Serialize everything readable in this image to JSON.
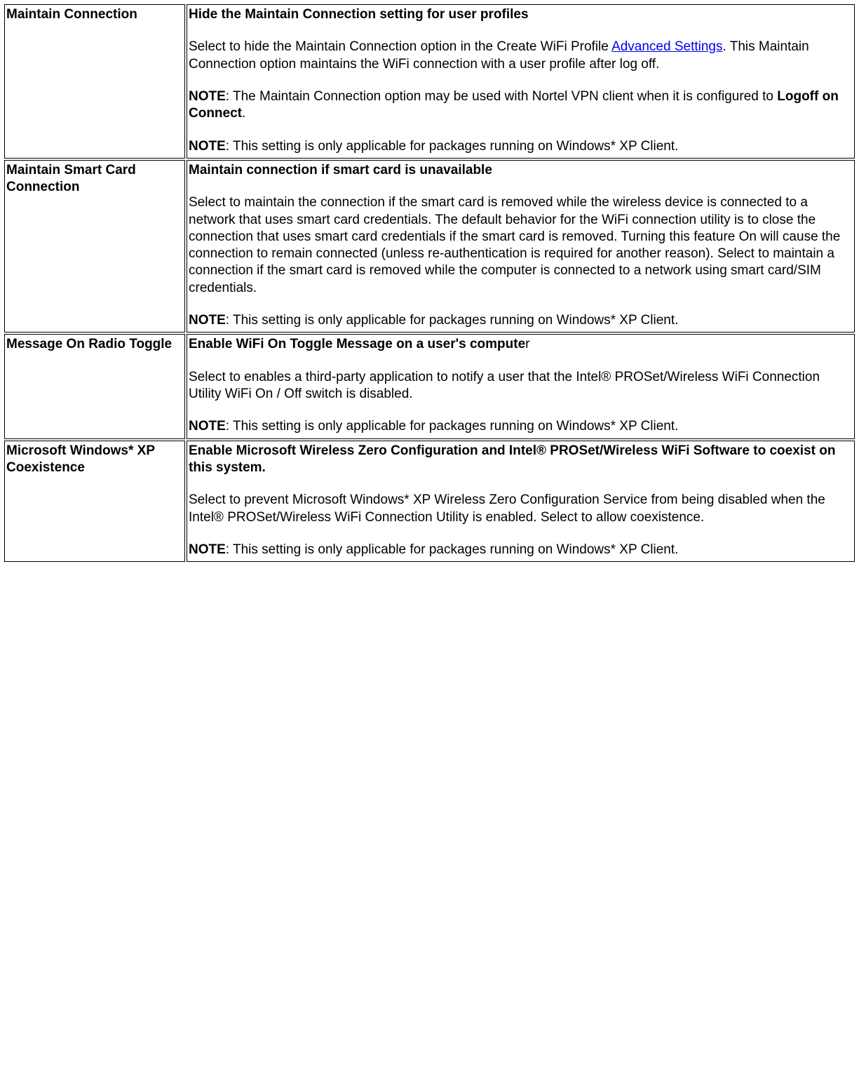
{
  "rows": [
    {
      "name": "Maintain Connection",
      "heading": "Hide the Maintain Connection setting for user profiles",
      "heading_trailing": "",
      "body_pre_link": "Select to hide the Maintain Connection option in the Create WiFi Profile ",
      "link_text": "Advanced Settings",
      "body_post_link": ". This Maintain Connection option maintains the WiFi connection with a user profile after log off.",
      "extra_note_pre": "NOTE",
      "extra_note_body": ": The Maintain Connection option may be used with Nortel VPN client when it is configured to ",
      "extra_note_bold": "Logoff on Connect",
      "extra_note_post": ".",
      "note_label": "NOTE",
      "note_body": ": This setting is only applicable for packages running on Windows* XP Client."
    },
    {
      "name": "Maintain Smart Card Connection",
      "heading": "Maintain connection if smart card is unavailable",
      "heading_trailing": "",
      "body": "Select to maintain the connection if the smart card is removed while the wireless device is connected to a network that uses smart card credentials. The default behavior for the WiFi connection utility is to close the connection that uses smart card credentials if the smart card is removed. Turning this feature On will cause the connection to remain connected (unless re-authentication is required for another reason). Select to maintain a connection if the smart card is removed while the computer is connected to a network using smart card/SIM credentials.",
      "note_label": "NOTE",
      "note_body": ": This setting is only applicable for packages running on Windows* XP Client."
    },
    {
      "name": "Message On Radio Toggle",
      "heading": "Enable WiFi On Toggle Message on a user's compute",
      "heading_trailing": "r",
      "body": "Select to enables a third-party application to notify a user that the Intel® PROSet/Wireless WiFi Connection Utility WiFi On / Off switch is disabled.",
      "note_label": "NOTE",
      "note_body": ": This setting is only applicable for packages running on Windows* XP Client."
    },
    {
      "name": "Microsoft Windows* XP Coexistence",
      "heading": "Enable Microsoft Wireless Zero Configuration and Intel® PROSet/Wireless WiFi Software to coexist on this system.",
      "heading_trailing": "",
      "body": "Select to prevent Microsoft Windows* XP Wireless Zero Configuration Service from being disabled when the Intel® PROSet/Wireless WiFi Connection Utility is enabled. Select to allow coexistence.",
      "note_label": "NOTE",
      "note_body": ": This setting is only applicable for packages running on Windows* XP Client."
    }
  ]
}
